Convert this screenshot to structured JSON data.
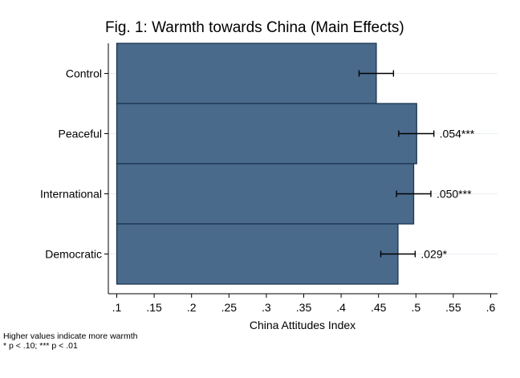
{
  "chart_data": {
    "type": "bar",
    "orientation": "horizontal",
    "title": "Fig. 1: Warmth towards China (Main Effects)",
    "xlabel": "China Attitudes Index",
    "ylabel": "",
    "xlim": [
      0.1,
      0.6
    ],
    "xticks": [
      0.1,
      0.15,
      0.2,
      0.25,
      0.3,
      0.35,
      0.4,
      0.45,
      0.5,
      0.55,
      0.6
    ],
    "xtick_labels": [
      ".1",
      ".15",
      ".2",
      ".25",
      ".3",
      ".35",
      ".4",
      ".45",
      ".5",
      ".55",
      ".6"
    ],
    "categories": [
      "Control",
      "Peaceful",
      "International",
      "Democratic"
    ],
    "values": [
      0.447,
      0.501,
      0.497,
      0.476
    ],
    "ci_low": [
      0.424,
      0.477,
      0.474,
      0.453
    ],
    "ci_high": [
      0.47,
      0.524,
      0.52,
      0.499
    ],
    "bar_labels": [
      "",
      ".054***",
      ".050***",
      ".029*"
    ],
    "bar_color": "#4a6a8c",
    "bar_edge_color": "#1c3550",
    "grid": true,
    "grid_color": "#e8eef3"
  },
  "notes": [
    "Higher values indicate more warmth",
    "* p < .10; *** p < .01"
  ]
}
